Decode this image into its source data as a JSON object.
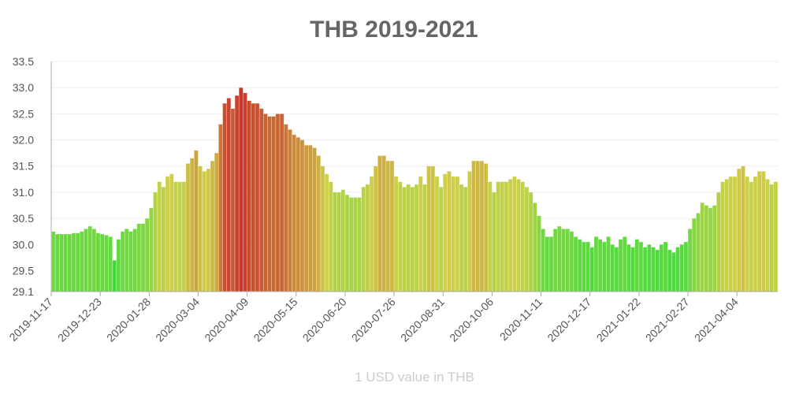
{
  "chart_data": {
    "type": "bar",
    "title": "THB 2019-2021",
    "x_label": "1 USD value in THB",
    "categories": [
      "2019-11-17",
      null,
      null,
      null,
      null,
      null,
      null,
      null,
      null,
      null,
      null,
      null,
      "2019-12-23",
      null,
      null,
      null,
      null,
      null,
      null,
      null,
      null,
      null,
      null,
      null,
      "2020-01-28",
      null,
      null,
      null,
      null,
      null,
      null,
      null,
      null,
      null,
      null,
      null,
      "2020-03-04",
      null,
      null,
      null,
      null,
      null,
      null,
      null,
      null,
      null,
      null,
      null,
      "2020-04-09",
      null,
      null,
      null,
      null,
      null,
      null,
      null,
      null,
      null,
      null,
      null,
      "2020-05-15",
      null,
      null,
      null,
      null,
      null,
      null,
      null,
      null,
      null,
      null,
      null,
      "2020-06-20",
      null,
      null,
      null,
      null,
      null,
      null,
      null,
      null,
      null,
      null,
      null,
      "2020-07-26",
      null,
      null,
      null,
      null,
      null,
      null,
      null,
      null,
      null,
      null,
      null,
      "2020-08-31",
      null,
      null,
      null,
      null,
      null,
      null,
      null,
      null,
      null,
      null,
      null,
      "2020-10-06",
      null,
      null,
      null,
      null,
      null,
      null,
      null,
      null,
      null,
      null,
      null,
      "2020-11-11",
      null,
      null,
      null,
      null,
      null,
      null,
      null,
      null,
      null,
      null,
      null,
      "2020-12-17",
      null,
      null,
      null,
      null,
      null,
      null,
      null,
      null,
      null,
      null,
      null,
      "2021-01-22",
      null,
      null,
      null,
      null,
      null,
      null,
      null,
      null,
      null,
      null,
      null,
      "2021-02-27",
      null,
      null,
      null,
      null,
      null,
      null,
      null,
      null,
      null,
      null,
      null,
      "2021-04-04",
      null,
      null,
      null,
      null,
      null,
      null,
      null,
      null,
      null
    ],
    "values": [
      30.25,
      30.2,
      30.2,
      30.2,
      30.2,
      30.22,
      30.22,
      30.25,
      30.3,
      30.35,
      30.3,
      30.22,
      30.2,
      30.18,
      30.15,
      29.7,
      30.1,
      30.25,
      30.3,
      30.25,
      30.3,
      30.4,
      30.4,
      30.5,
      30.7,
      31.0,
      31.2,
      31.1,
      31.3,
      31.35,
      31.2,
      31.2,
      31.2,
      31.55,
      31.65,
      31.8,
      31.5,
      31.4,
      31.45,
      31.6,
      31.75,
      32.3,
      32.7,
      32.8,
      32.6,
      32.85,
      33.0,
      32.9,
      32.75,
      32.7,
      32.7,
      32.6,
      32.5,
      32.45,
      32.45,
      32.5,
      32.5,
      32.3,
      32.2,
      32.1,
      32.05,
      32.0,
      31.9,
      31.9,
      31.85,
      31.7,
      31.5,
      31.35,
      31.2,
      31.0,
      31.0,
      31.05,
      30.95,
      30.9,
      30.9,
      30.9,
      31.1,
      31.15,
      31.3,
      31.5,
      31.7,
      31.7,
      31.6,
      31.6,
      31.3,
      31.2,
      31.1,
      31.15,
      31.1,
      31.15,
      31.3,
      31.15,
      31.5,
      31.5,
      31.3,
      31.1,
      31.35,
      31.4,
      31.3,
      31.3,
      31.15,
      31.1,
      31.4,
      31.6,
      31.6,
      31.6,
      31.55,
      31.2,
      31.0,
      31.2,
      31.2,
      31.2,
      31.25,
      31.3,
      31.25,
      31.2,
      31.1,
      31.0,
      30.8,
      30.55,
      30.3,
      30.15,
      30.15,
      30.3,
      30.35,
      30.3,
      30.3,
      30.25,
      30.15,
      30.1,
      30.05,
      30.05,
      29.95,
      30.15,
      30.1,
      30.05,
      30.15,
      30.0,
      29.95,
      30.1,
      30.15,
      30.0,
      29.95,
      30.1,
      30.05,
      29.95,
      30.0,
      29.95,
      29.9,
      30.0,
      30.05,
      29.9,
      29.85,
      29.95,
      30.0,
      30.05,
      30.3,
      30.5,
      30.6,
      30.8,
      30.75,
      30.7,
      30.75,
      31.0,
      31.2,
      31.25,
      31.3,
      31.3,
      31.45,
      31.5,
      31.3,
      31.2,
      31.3,
      31.4,
      31.4,
      31.25,
      31.15,
      31.2
    ],
    "color_scale": [
      "#3ddc3d",
      "#cfd048",
      "#c8342a"
    ],
    "ylim": [
      29.1,
      33.5
    ],
    "yticks": [
      29.1,
      29.5,
      {
        "value": 30,
        "label": "30.0"
      },
      30.5,
      {
        "value": 31,
        "label": "31.0"
      },
      31.5,
      {
        "value": 32,
        "label": "32.0"
      },
      32.5,
      {
        "value": 33,
        "label": "33.0"
      },
      33.5
    ],
    "grid": true
  }
}
